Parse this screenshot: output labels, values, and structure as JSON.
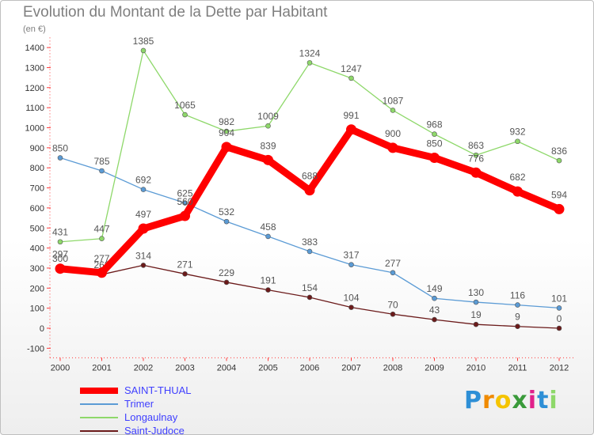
{
  "chart_data": {
    "type": "line",
    "title": "Evolution du Montant de la Dette par Habitant",
    "subtitle": "(en €)",
    "x": [
      "2000",
      "2001",
      "2002",
      "2003",
      "2004",
      "2005",
      "2006",
      "2007",
      "2008",
      "2009",
      "2010",
      "2011",
      "2012"
    ],
    "yticks": [
      -100,
      0,
      100,
      200,
      300,
      400,
      500,
      600,
      700,
      800,
      900,
      1000,
      1100,
      1200,
      1300,
      1400
    ],
    "ylim": [
      -100,
      1450
    ],
    "grid": false,
    "legend_position": "bottom-left",
    "series": [
      {
        "name": "Saint-Judoce",
        "color": "#6b1a1a",
        "values": [
          300,
          268,
          314,
          271,
          229,
          191,
          154,
          104,
          70,
          43,
          19,
          9,
          0
        ]
      },
      {
        "name": "Trimer",
        "color": "#5b9bd5",
        "values": [
          850,
          785,
          692,
          625,
          532,
          458,
          383,
          317,
          277,
          149,
          130,
          116,
          101
        ]
      },
      {
        "name": "Longaulnay",
        "color": "#8ed86a",
        "values": [
          431,
          447,
          1385,
          1065,
          982,
          1009,
          1324,
          1247,
          1087,
          968,
          863,
          932,
          836
        ]
      },
      {
        "name": "SAINT-THUAL",
        "color": "#ff0000",
        "values": [
          297,
          277,
          497,
          560,
          904,
          839,
          688,
          991,
          900,
          850,
          776,
          682,
          594
        ]
      }
    ],
    "labels": [
      {
        "series": "Saint-Judoce",
        "texts": [
          "300",
          "268",
          "314",
          "271",
          "229",
          "191",
          "154",
          "104",
          "70",
          "43",
          "19",
          "9",
          "0"
        ]
      },
      {
        "series": "Trimer",
        "texts": [
          "850",
          "785",
          "692",
          "625",
          "532",
          "458",
          "383",
          "317",
          "277",
          "149",
          "130",
          "116",
          "101"
        ]
      },
      {
        "series": "Longaulnay",
        "texts": [
          "431",
          "447",
          "1385",
          "1065",
          "982",
          "1009",
          "1324",
          "1247",
          "1087",
          "968",
          "863",
          "932",
          "836"
        ]
      },
      {
        "series": "SAINT-THUAL",
        "texts": [
          "297",
          "277",
          "497",
          "560",
          "904",
          "839",
          "688",
          "991",
          "900",
          "850",
          "776",
          "682",
          "594"
        ]
      }
    ]
  },
  "legend": {
    "items": [
      {
        "label": "SAINT-THUAL",
        "color": "#ff0000",
        "thick": true
      },
      {
        "label": "Trimer",
        "color": "#5b9bd5",
        "thick": false
      },
      {
        "label": "Longaulnay",
        "color": "#8ed86a",
        "thick": false
      },
      {
        "label": "Saint-Judoce",
        "color": "#6b1a1a",
        "thick": false
      }
    ]
  },
  "logo": {
    "letters": [
      "P",
      "r",
      "o",
      "x",
      "i",
      "t",
      "i"
    ],
    "colors": [
      "#2e8fd6",
      "#f08a00",
      "#f5c400",
      "#3a9a3a",
      "#e0208a",
      "#2e8fd6",
      "#8ed86a"
    ]
  }
}
